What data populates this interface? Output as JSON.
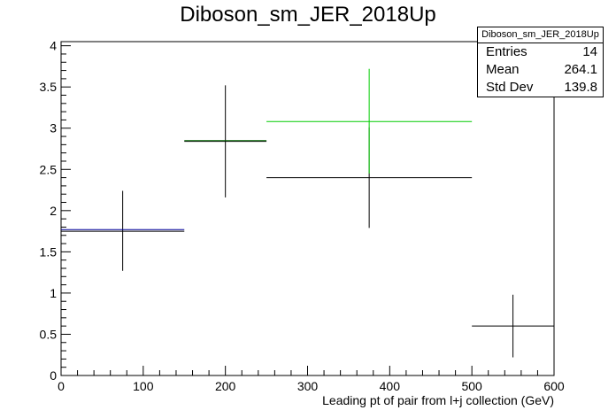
{
  "title": "Diboson_sm_JER_2018Up",
  "stats": {
    "name": "Diboson_sm_JER_2018Up",
    "rows": [
      {
        "label": "Entries",
        "value": "14"
      },
      {
        "label": "Mean",
        "value": "264.1"
      },
      {
        "label": "Std Dev",
        "value": "139.8"
      }
    ]
  },
  "chart_data": {
    "type": "scatter",
    "title": "Diboson_sm_JER_2018Up",
    "xlabel": "Leading pt of pair from l+j collection (GeV)",
    "ylabel": "",
    "xlim": [
      0,
      600
    ],
    "ylim": [
      0,
      4.05
    ],
    "xticks": [
      "0",
      "100",
      "200",
      "300",
      "400",
      "500",
      "600"
    ],
    "yticks": [
      "0",
      "0.5",
      "1",
      "1.5",
      "2",
      "2.5",
      "3",
      "3.5",
      "4"
    ],
    "grid": false,
    "series": [
      {
        "color": "#000000",
        "points": [
          {
            "xlow": 0,
            "xhigh": 150,
            "y": 1.75,
            "ylow": 1.27,
            "yhigh": 2.24
          },
          {
            "xlow": 150,
            "xhigh": 250,
            "y": 2.84,
            "ylow": 2.16,
            "yhigh": 3.52
          },
          {
            "xlow": 250,
            "xhigh": 500,
            "y": 2.4,
            "ylow": 1.79,
            "yhigh": 3.01
          },
          {
            "xlow": 500,
            "xhigh": 600,
            "y": 0.6,
            "ylow": 0.22,
            "yhigh": 0.98
          }
        ]
      },
      {
        "color": "#00cc00",
        "points": [
          {
            "xlow": 250,
            "xhigh": 500,
            "y": 3.08,
            "ylow": 2.45,
            "yhigh": 3.72
          }
        ]
      },
      {
        "color": "#000099",
        "points": [
          {
            "xlow": 0,
            "xhigh": 150,
            "y": 1.77
          }
        ]
      },
      {
        "color": "#006600",
        "points": [
          {
            "xlow": 150,
            "xhigh": 250,
            "y": 2.85
          }
        ]
      }
    ]
  }
}
